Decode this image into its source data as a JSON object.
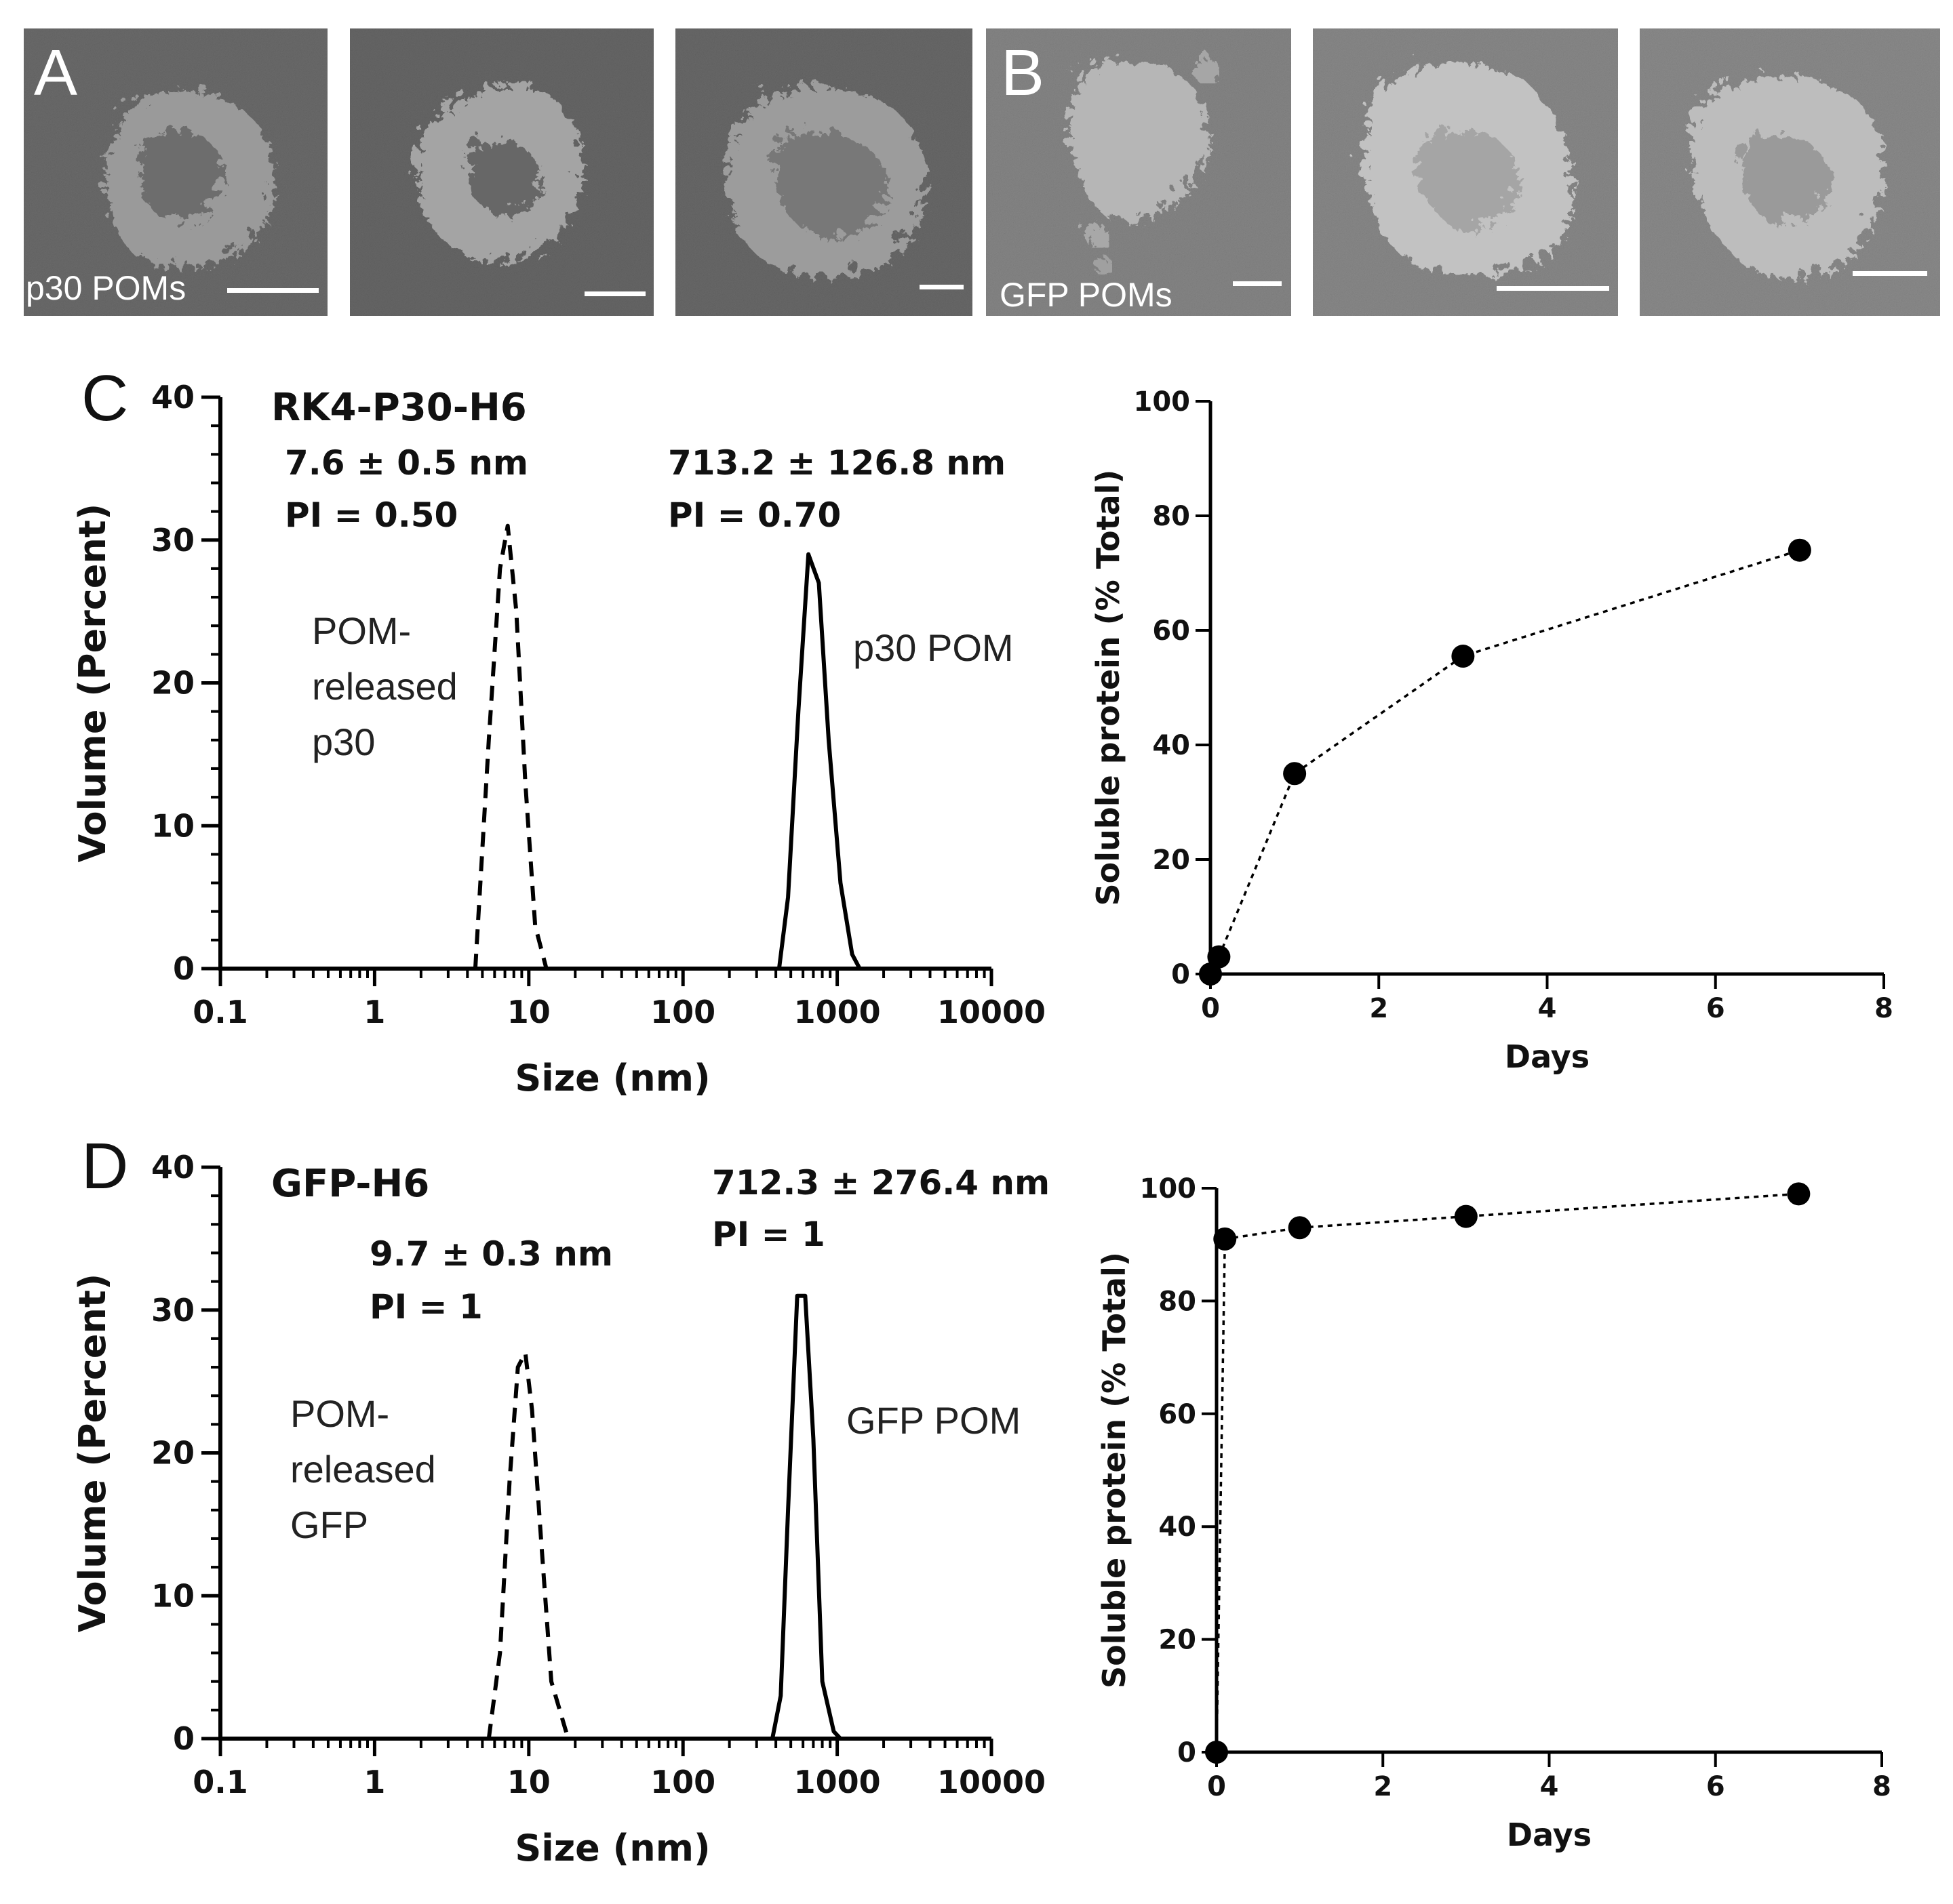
{
  "panels": {
    "A": {
      "letter": "A",
      "caption": "p30 POMs"
    },
    "B": {
      "letter": "B",
      "caption": "GFP POMs"
    },
    "C": {
      "letter": "C"
    },
    "D": {
      "letter": "D"
    }
  },
  "colors": {
    "line": "#000000",
    "sem_background": "#6e6e6e"
  },
  "chart_data": [
    {
      "id": "C-dls",
      "type": "line",
      "title": "RK4-P30-H6",
      "xlabel": "Size (nm)",
      "ylabel": "Volume (Percent)",
      "xscale": "log",
      "xlim": [
        0.1,
        10000
      ],
      "ylim": [
        0,
        40
      ],
      "xticks": [
        "0.1",
        "1",
        "10",
        "100",
        "1000",
        "10000"
      ],
      "yticks": [
        "0",
        "10",
        "20",
        "30",
        "40"
      ],
      "peak_annotations": [
        {
          "size": "7.6 ± 0.5 nm",
          "pi": "PI = 0.50"
        },
        {
          "size": "713.2 ± 126.8 nm",
          "pi": "PI = 0.70"
        }
      ],
      "series": [
        {
          "name": "POM-released p30",
          "label_lines": [
            "POM-",
            "released",
            "p30"
          ],
          "style": "dashed",
          "x": [
            4.5,
            5.5,
            6.5,
            7.3,
            8.3,
            9.5,
            11,
            13
          ],
          "y": [
            0,
            16,
            28,
            31,
            25,
            13,
            3,
            0
          ]
        },
        {
          "name": "p30 POM",
          "label_lines": [
            "p30 POM"
          ],
          "style": "solid",
          "x": [
            420,
            480,
            560,
            650,
            760,
            880,
            1050,
            1250,
            1400
          ],
          "y": [
            0,
            5,
            18,
            29,
            27,
            16,
            6,
            1,
            0
          ]
        }
      ]
    },
    {
      "id": "C-release",
      "type": "line",
      "xlabel": "Days",
      "ylabel": "Soluble protein (% Total)",
      "xlim": [
        0,
        8
      ],
      "ylim": [
        0,
        100
      ],
      "xticks": [
        "0",
        "2",
        "4",
        "6",
        "8"
      ],
      "yticks": [
        "0",
        "20",
        "40",
        "60",
        "80",
        "100"
      ],
      "series": [
        {
          "style": "dotted-markers",
          "x": [
            0,
            0.1,
            1,
            3,
            7
          ],
          "y": [
            0,
            3,
            35,
            55.5,
            74
          ]
        }
      ]
    },
    {
      "id": "D-dls",
      "type": "line",
      "title": "GFP-H6",
      "xlabel": "Size (nm)",
      "ylabel": "Volume (Percent)",
      "xscale": "log",
      "xlim": [
        0.1,
        10000
      ],
      "ylim": [
        0,
        40
      ],
      "xticks": [
        "0.1",
        "1",
        "10",
        "100",
        "1000",
        "10000"
      ],
      "yticks": [
        "0",
        "10",
        "20",
        "30",
        "40"
      ],
      "peak_annotations": [
        {
          "size": "9.7 ± 0.3 nm",
          "pi": "PI = 1"
        },
        {
          "size": "712.3 ± 276.4 nm",
          "pi": "PI = 1"
        }
      ],
      "series": [
        {
          "name": "POM-released GFP",
          "label_lines": [
            "POM-",
            "released",
            "GFP"
          ],
          "style": "dashed",
          "x": [
            5.5,
            6.5,
            7.5,
            8.5,
            9.5,
            10.5,
            12,
            14,
            18
          ],
          "y": [
            0,
            6,
            18,
            26,
            27,
            23,
            14,
            4,
            0
          ]
        },
        {
          "name": "GFP POM",
          "label_lines": [
            "GFP POM"
          ],
          "style": "solid",
          "x": [
            380,
            430,
            480,
            550,
            620,
            700,
            800,
            950,
            1050
          ],
          "y": [
            0,
            3,
            16,
            31,
            31,
            21,
            4,
            0.5,
            0
          ]
        }
      ]
    },
    {
      "id": "D-release",
      "type": "line",
      "xlabel": "Days",
      "ylabel": "Soluble protein (% Total)",
      "xlim": [
        0,
        8
      ],
      "ylim": [
        0,
        100
      ],
      "xticks": [
        "0",
        "2",
        "4",
        "6",
        "8"
      ],
      "yticks": [
        "0",
        "20",
        "40",
        "60",
        "80",
        "100"
      ],
      "series": [
        {
          "style": "dotted-markers",
          "x": [
            0,
            0.1,
            1,
            3,
            7
          ],
          "y": [
            0,
            91,
            93,
            95,
            99
          ]
        }
      ]
    }
  ]
}
